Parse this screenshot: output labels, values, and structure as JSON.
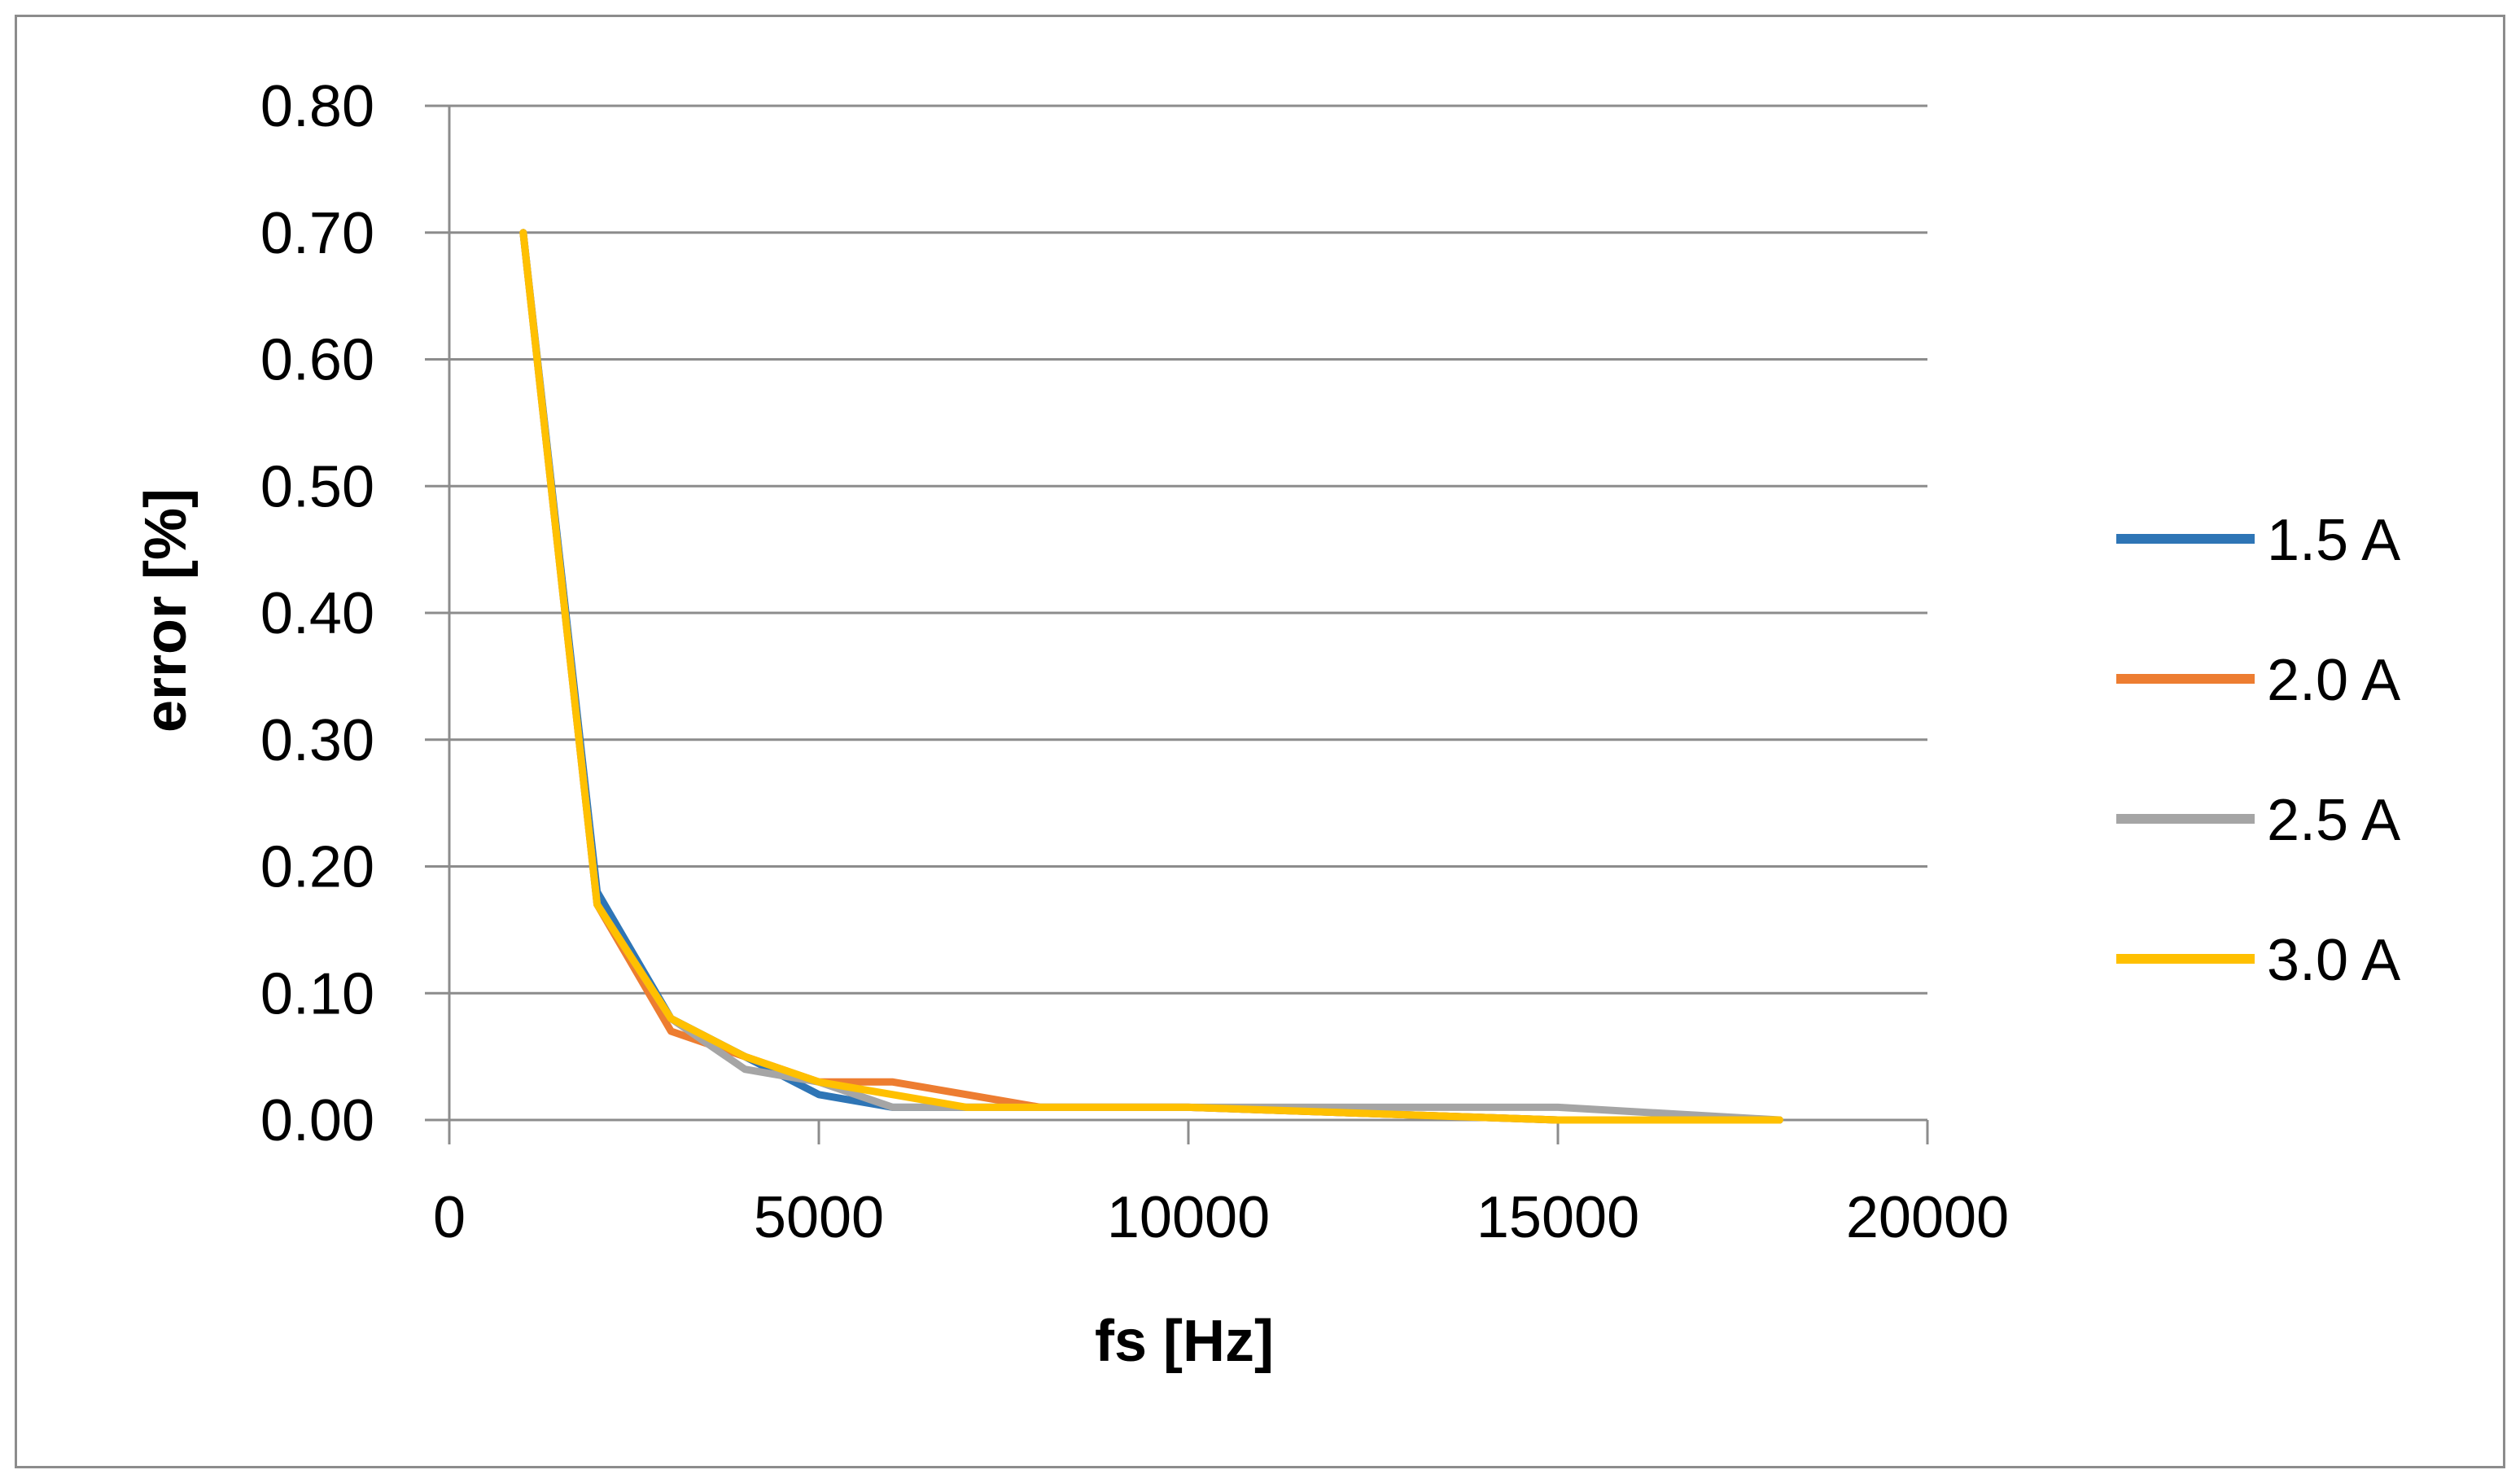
{
  "chart_data": {
    "type": "line",
    "title": "",
    "xlabel": "fs [Hz]",
    "ylabel": "error [%]",
    "xlim": [
      0,
      20000
    ],
    "ylim": [
      0,
      0.8
    ],
    "x_ticks": [
      0,
      5000,
      10000,
      15000,
      20000
    ],
    "x_tick_labels": [
      "0",
      "5000",
      "10000",
      "15000",
      "20000"
    ],
    "y_ticks": [
      0,
      0.1,
      0.2,
      0.3,
      0.4,
      0.5,
      0.6,
      0.7,
      0.8
    ],
    "y_tick_labels": [
      "0.00",
      "0.10",
      "0.20",
      "0.30",
      "0.40",
      "0.50",
      "0.60",
      "0.70",
      "0.80"
    ],
    "grid": "horizontal",
    "legend_position": "right",
    "x": [
      1000,
      2000,
      3000,
      4000,
      5000,
      6000,
      7000,
      8000,
      10000,
      15000,
      18000
    ],
    "series": [
      {
        "name": "1.5 A",
        "color": "#2E75B6",
        "values": [
          0.7,
          0.18,
          0.08,
          0.05,
          0.02,
          0.01,
          0.01,
          0.01,
          0.01,
          0.0,
          0.0
        ]
      },
      {
        "name": "2.0 A",
        "color": "#ED7D31",
        "values": [
          0.7,
          0.17,
          0.07,
          0.05,
          0.03,
          0.03,
          0.02,
          0.01,
          0.01,
          0.0,
          0.0
        ]
      },
      {
        "name": "2.5 A",
        "color": "#A5A5A5",
        "values": [
          0.7,
          0.17,
          0.08,
          0.04,
          0.03,
          0.01,
          0.01,
          0.01,
          0.01,
          0.01,
          0.0
        ]
      },
      {
        "name": "3.0 A",
        "color": "#FFC000",
        "values": [
          0.7,
          0.17,
          0.08,
          0.05,
          0.03,
          0.02,
          0.01,
          0.01,
          0.01,
          0.0,
          0.0
        ]
      }
    ]
  }
}
